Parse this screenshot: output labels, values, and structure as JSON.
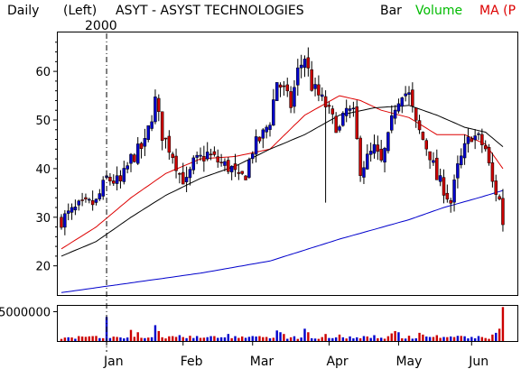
{
  "header": {
    "period": "Daily",
    "scale": "(Left)",
    "title": "ASYT - ASYST TECHNOLOGIES",
    "chart_style": "Bar",
    "volume_label": "Volume",
    "ma_label": "MA (P"
  },
  "year_marker": "2000",
  "colors": {
    "up": "#0000cc",
    "down": "#cc0000",
    "volume_label": "#00bb00",
    "ma_label": "#dd0000",
    "ma_short": "#dd0000",
    "ma_mid": "#000000",
    "ma_long": "#0000cc"
  },
  "chart_data": [
    {
      "type": "candlestick",
      "title": "ASYT - ASYST TECHNOLOGIES",
      "xlabel": "",
      "ylabel": "",
      "ylim": [
        14,
        68
      ],
      "y_ticks": [
        "20",
        "30",
        "40",
        "50",
        "60"
      ],
      "x_ticks": [
        "Jan",
        "Feb",
        "Mar",
        "Apr",
        "May",
        "Jun"
      ],
      "x_tick_days": [
        13,
        35,
        55,
        77,
        97,
        118
      ],
      "year_marker_day": 13,
      "grid": false,
      "price_path": [
        [
          0,
          29.5
        ],
        [
          5,
          32
        ],
        [
          10,
          33
        ],
        [
          13,
          38
        ],
        [
          17,
          37
        ],
        [
          20,
          42
        ],
        [
          24,
          45
        ],
        [
          27,
          54
        ],
        [
          29,
          47
        ],
        [
          32,
          43
        ],
        [
          34,
          39
        ],
        [
          36,
          37
        ],
        [
          38,
          41
        ],
        [
          42,
          43
        ],
        [
          46,
          41
        ],
        [
          49,
          40
        ],
        [
          51,
          37.5
        ],
        [
          53,
          39
        ],
        [
          55,
          44
        ],
        [
          58,
          47
        ],
        [
          60,
          50
        ],
        [
          62,
          58
        ],
        [
          64,
          56
        ],
        [
          66,
          53
        ],
        [
          68,
          60
        ],
        [
          70,
          63
        ],
        [
          72,
          57
        ],
        [
          74,
          55
        ],
        [
          76,
          53
        ],
        [
          78,
          50
        ],
        [
          80,
          48
        ],
        [
          82,
          52
        ],
        [
          84,
          51
        ],
        [
          86,
          40
        ],
        [
          88,
          42
        ],
        [
          90,
          44
        ],
        [
          92,
          41
        ],
        [
          94,
          46
        ],
        [
          96,
          53
        ],
        [
          98,
          56
        ],
        [
          100,
          55
        ],
        [
          102,
          49
        ],
        [
          104,
          46
        ],
        [
          106,
          43
        ],
        [
          108,
          38
        ],
        [
          110,
          36
        ],
        [
          112,
          33
        ],
        [
          114,
          40
        ],
        [
          116,
          44
        ],
        [
          118,
          47
        ],
        [
          120,
          46
        ],
        [
          122,
          44
        ],
        [
          124,
          37
        ],
        [
          126,
          33.5
        ],
        [
          127,
          29
        ]
      ],
      "moving_averages": [
        {
          "points": [
            [
              0,
              23.5
            ],
            [
              10,
              28
            ],
            [
              20,
              34
            ],
            [
              30,
              39
            ],
            [
              40,
              42
            ],
            [
              50,
              42.5
            ],
            [
              60,
              44
            ],
            [
              70,
              51
            ],
            [
              80,
              55
            ],
            [
              86,
              54
            ],
            [
              92,
              52
            ],
            [
              100,
              50.5
            ],
            [
              108,
              47
            ],
            [
              116,
              47
            ],
            [
              122,
              45
            ],
            [
              127,
              40
            ]
          ]
        },
        {
          "points": [
            [
              0,
              22
            ],
            [
              10,
              25
            ],
            [
              20,
              30
            ],
            [
              30,
              34.5
            ],
            [
              40,
              38
            ],
            [
              50,
              40.5
            ],
            [
              60,
              44
            ],
            [
              70,
              47
            ],
            [
              80,
              51
            ],
            [
              90,
              52.5
            ],
            [
              100,
              53
            ],
            [
              108,
              51
            ],
            [
              116,
              48.5
            ],
            [
              122,
              47.5
            ],
            [
              127,
              44.5
            ]
          ]
        },
        {
          "points": [
            [
              0,
              14.5
            ],
            [
              20,
              16.5
            ],
            [
              40,
              18.5
            ],
            [
              60,
              21
            ],
            [
              80,
              25.5
            ],
            [
              100,
              29.5
            ],
            [
              110,
              32
            ],
            [
              120,
              34
            ],
            [
              127,
              35.5
            ]
          ]
        }
      ]
    },
    {
      "type": "bar",
      "title": "",
      "xlabel": "",
      "ylabel": "",
      "y_ticks": [
        "5000000"
      ],
      "ylim": [
        0,
        6000000
      ],
      "base_volume": 600000,
      "spikes": [
        [
          13,
          4100000
        ],
        [
          20,
          1900000
        ],
        [
          22,
          1500000
        ],
        [
          27,
          2700000
        ],
        [
          28,
          1700000
        ],
        [
          34,
          1000000
        ],
        [
          37,
          900000
        ],
        [
          48,
          1200000
        ],
        [
          62,
          1800000
        ],
        [
          63,
          1500000
        ],
        [
          64,
          1200000
        ],
        [
          70,
          2100000
        ],
        [
          71,
          1500000
        ],
        [
          76,
          1200000
        ],
        [
          80,
          1100000
        ],
        [
          90,
          1000000
        ],
        [
          95,
          1300000
        ],
        [
          96,
          1700000
        ],
        [
          97,
          1500000
        ],
        [
          100,
          900000
        ],
        [
          103,
          1400000
        ],
        [
          104,
          1100000
        ],
        [
          108,
          1000000
        ],
        [
          124,
          1100000
        ],
        [
          125,
          1400000
        ],
        [
          126,
          2100000
        ],
        [
          127,
          5800000
        ]
      ]
    }
  ]
}
